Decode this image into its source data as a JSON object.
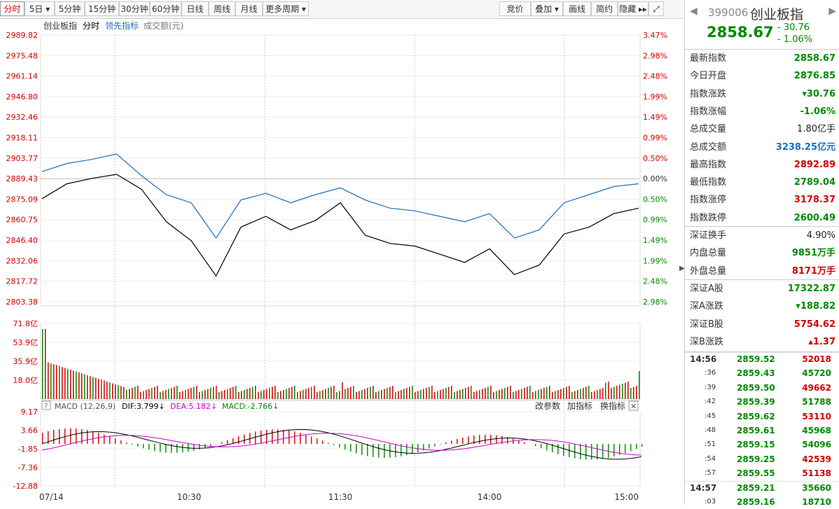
{
  "toolbar": {
    "left": [
      {
        "label": "分时",
        "active": true
      },
      {
        "label": "5日 ▾"
      },
      {
        "label": "5分钟"
      },
      {
        "label": "15分钟"
      },
      {
        "label": "30分钟"
      },
      {
        "label": "60分钟"
      },
      {
        "label": "日线"
      },
      {
        "label": "周线"
      },
      {
        "label": "月线"
      },
      {
        "label": "更多周期 ▾"
      }
    ],
    "right": [
      {
        "label": "竞价"
      },
      {
        "label": "叠加 ▾"
      },
      {
        "label": "画线"
      },
      {
        "label": "简约"
      },
      {
        "label": "隐藏 ▸▸"
      },
      {
        "label": "⤢"
      }
    ]
  },
  "chart": {
    "legend": {
      "name": "创业板指",
      "mode": "分时",
      "lead": "领先指标",
      "volume": "成交额(元)"
    },
    "price_labels": [
      "2989.82",
      "2975.48",
      "2961.14",
      "2946.80",
      "2932.46",
      "2918.11",
      "2903.77",
      "2889.43",
      "2875.09",
      "2860.75",
      "2846.40",
      "2832.06",
      "2817.72",
      "2803.38"
    ],
    "pct_labels": [
      "3.47%",
      "2.98%",
      "2.48%",
      "1.99%",
      "1.49%",
      "0.99%",
      "0.50%",
      "0.00%",
      "0.50%",
      "0.99%",
      "1.49%",
      "1.99%",
      "2.48%",
      "2.98%"
    ],
    "vol_labels": [
      "71.8亿",
      "53.9亿",
      "35.9亿",
      "18.0亿"
    ],
    "macd": {
      "title": "MACD (12,26,9)",
      "dif": "DIF:3.799↓",
      "dea": "DEA:5.182↓",
      "macd": "MACD:-2.766↓",
      "change_param": "改参数",
      "add_indicator": "加指标",
      "swap_indicator": "换指标",
      "help": "?",
      "close": "✕",
      "labels": [
        "9.17",
        "3.66",
        "-1.85",
        "-7.36",
        "-12.88"
      ]
    },
    "time_labels": [
      "07/14",
      "10:30",
      "11:30",
      "14:00",
      "15:00"
    ]
  },
  "chart_data": {
    "type": "line",
    "x": [
      "09:30",
      "09:40",
      "09:50",
      "10:00",
      "10:10",
      "10:20",
      "10:30",
      "10:40",
      "10:50",
      "11:00",
      "11:10",
      "11:20",
      "11:30",
      "13:10",
      "13:20",
      "13:30",
      "13:40",
      "13:50",
      "14:00",
      "14:10",
      "14:20",
      "14:30",
      "14:40",
      "14:50",
      "15:00"
    ],
    "series": [
      {
        "values": [
          2869,
          2880,
          2884,
          2887,
          2876,
          2852,
          2838,
          2812,
          2848,
          2856,
          2846,
          2853,
          2866,
          2842,
          2836,
          2834,
          2828,
          2822,
          2832,
          2813,
          2820,
          2843,
          2848,
          2858,
          2862
        ]
      },
      {
        "values": [
          2889,
          2895,
          2898,
          2902,
          2886,
          2872,
          2866,
          2840,
          2868,
          2873,
          2866,
          2872,
          2877,
          2868,
          2862,
          2860,
          2856,
          2852,
          2858,
          2840,
          2846,
          2866,
          2872,
          2878,
          2880
        ]
      }
    ],
    "ylim": [
      2789.04,
      2989.82
    ],
    "base": 2876.85,
    "volume_ylim": [
      0,
      71.8
    ],
    "macd_ylim": [
      -12.88,
      9.17
    ]
  },
  "side": {
    "code": "399006",
    "name": "创业板指",
    "price": "2858.67",
    "change": "- 30.76",
    "change_pct": "- 1.06%",
    "stats": [
      {
        "k": "最新指数",
        "v": "2858.67",
        "c": "green"
      },
      {
        "k": "今日开盘",
        "v": "2876.85",
        "c": "green"
      },
      {
        "k": "指数涨跌",
        "v": "▾30.76",
        "c": "green"
      },
      {
        "k": "指数涨幅",
        "v": "-1.06%",
        "c": "green"
      },
      {
        "k": "总成交量",
        "v": "1.80亿手",
        "c": "black"
      },
      {
        "k": "总成交额",
        "v": "3238.25亿元",
        "c": "blue"
      },
      {
        "k": "最高指数",
        "v": "2892.89",
        "c": "red"
      },
      {
        "k": "最低指数",
        "v": "2789.04",
        "c": "green"
      },
      {
        "k": "指数涨停",
        "v": "3178.37",
        "c": "red"
      },
      {
        "k": "指数跌停",
        "v": "2600.49",
        "c": "green"
      }
    ],
    "stats2": [
      {
        "k": "深证换手",
        "v": "4.90%",
        "c": "black"
      },
      {
        "k": "内盘总量",
        "v": "9851万手",
        "c": "green"
      },
      {
        "k": "外盘总量",
        "v": "8171万手",
        "c": "red"
      }
    ],
    "stats3": [
      {
        "k": "深证A股",
        "v": "17322.87",
        "c": "green"
      },
      {
        "k": "深A涨跌",
        "v": "▾188.82",
        "c": "green"
      },
      {
        "k": "深证B股",
        "v": "5754.62",
        "c": "red"
      },
      {
        "k": "深B涨跌",
        "v": "▴1.37",
        "c": "red"
      }
    ],
    "ticks": [
      {
        "t": "14:56",
        "p": "2859.52",
        "v": "52018",
        "c": "red",
        "major": true
      },
      {
        "t": ":36",
        "p": "2859.43",
        "v": "45720",
        "c": "green"
      },
      {
        "t": ":39",
        "p": "2859.50",
        "v": "49662",
        "c": "red"
      },
      {
        "t": ":42",
        "p": "2859.39",
        "v": "51788",
        "c": "green"
      },
      {
        "t": ":45",
        "p": "2859.62",
        "v": "53110",
        "c": "red"
      },
      {
        "t": ":48",
        "p": "2859.61",
        "v": "45968",
        "c": "green"
      },
      {
        "t": ":51",
        "p": "2859.15",
        "v": "54096",
        "c": "green"
      },
      {
        "t": ":54",
        "p": "2859.25",
        "v": "42539",
        "c": "red"
      },
      {
        "t": ":57",
        "p": "2859.55",
        "v": "51138",
        "c": "red"
      },
      {
        "t": "14:57",
        "p": "2859.21",
        "v": "35660",
        "c": "green",
        "major": true
      },
      {
        "t": ":03",
        "p": "2859.16",
        "v": "18710",
        "c": "green"
      }
    ],
    "colors": {
      "up": "#d40000",
      "down": "#008a00",
      "blue": "#1a6fc0"
    }
  }
}
